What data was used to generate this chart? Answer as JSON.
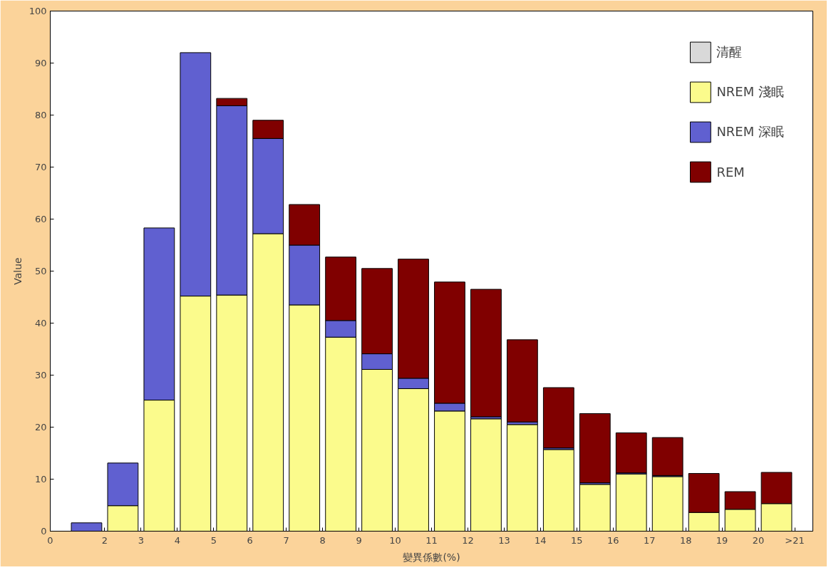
{
  "chart_data": {
    "type": "bar",
    "stacked": true,
    "xlabel": "變異係數(%)",
    "ylabel": "Value",
    "x": [
      1,
      2,
      3,
      4,
      5,
      6,
      7,
      8,
      9,
      10,
      11,
      12,
      13,
      14,
      15,
      16,
      17,
      18,
      19,
      20
    ],
    "xlim": [
      0,
      21
    ],
    "xticks": [
      {
        "value": 0,
        "label": "0"
      },
      {
        "value": 1.5,
        "label": "2"
      },
      {
        "value": 2.5,
        "label": "3"
      },
      {
        "value": 3.5,
        "label": "4"
      },
      {
        "value": 4.5,
        "label": "5"
      },
      {
        "value": 5.5,
        "label": "6"
      },
      {
        "value": 6.5,
        "label": "7"
      },
      {
        "value": 7.5,
        "label": "8"
      },
      {
        "value": 8.5,
        "label": "9"
      },
      {
        "value": 9.5,
        "label": "10"
      },
      {
        "value": 10.5,
        "label": "11"
      },
      {
        "value": 11.5,
        "label": "12"
      },
      {
        "value": 12.5,
        "label": "13"
      },
      {
        "value": 13.5,
        "label": "14"
      },
      {
        "value": 14.5,
        "label": "15"
      },
      {
        "value": 15.5,
        "label": "16"
      },
      {
        "value": 16.5,
        "label": "17"
      },
      {
        "value": 17.5,
        "label": "18"
      },
      {
        "value": 18.5,
        "label": "19"
      },
      {
        "value": 19.5,
        "label": "20"
      },
      {
        "value": 20.5,
        "label": ">21"
      }
    ],
    "ylim": [
      0,
      100
    ],
    "yticks": [
      0,
      10,
      20,
      30,
      40,
      50,
      60,
      70,
      80,
      90,
      100
    ],
    "grid": false,
    "legend": "top right",
    "series": [
      {
        "name": "清醒",
        "color": "#d9d9d9",
        "values": [
          0,
          0,
          0,
          0,
          0,
          0,
          0,
          0,
          0,
          0,
          0,
          0,
          0,
          0,
          0,
          0,
          0,
          0,
          0,
          0
        ]
      },
      {
        "name": "NREM 淺眠",
        "color": "#fbfb8c",
        "values": [
          0,
          4.9,
          25.2,
          45.2,
          45.4,
          57.2,
          43.5,
          37.3,
          31.1,
          27.4,
          23.1,
          21.6,
          20.5,
          15.7,
          9,
          11,
          10.5,
          3.6,
          4.2,
          5.3
        ]
      },
      {
        "name": "NREM 深眠",
        "color": "#6060d0",
        "values": [
          1.6,
          8.2,
          33.1,
          46.8,
          36.4,
          18.3,
          11.5,
          3.2,
          3,
          2,
          1.5,
          0.4,
          0.5,
          0.3,
          0.3,
          0.2,
          0.2,
          0,
          0,
          0
        ]
      },
      {
        "name": "REM",
        "color": "#800000",
        "values": [
          0,
          0,
          0,
          0,
          1.4,
          3.5,
          7.8,
          12.2,
          16.4,
          22.9,
          23.3,
          24.5,
          15.8,
          11.6,
          13.3,
          7.7,
          7.3,
          7.5,
          3.4,
          6
        ]
      }
    ]
  }
}
